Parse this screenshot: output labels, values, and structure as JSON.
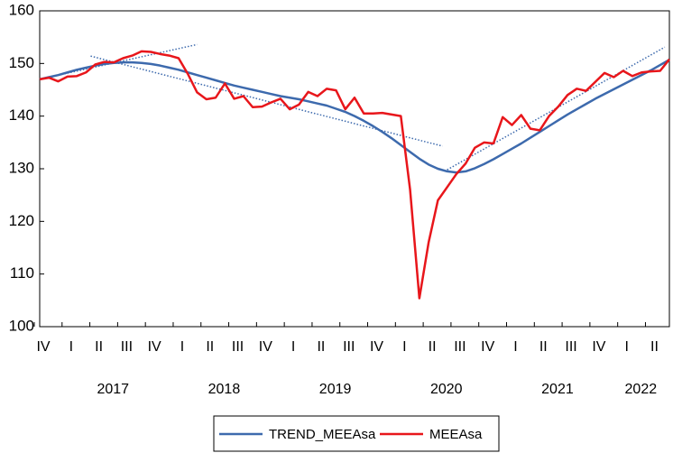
{
  "chart_data": {
    "type": "line",
    "categories": [
      "IV",
      null,
      null,
      "I",
      null,
      null,
      "II",
      null,
      null,
      "III",
      null,
      null,
      "IV",
      null,
      null,
      "I",
      null,
      null,
      "II",
      null,
      null,
      "III",
      null,
      null,
      "IV",
      null,
      null,
      "I",
      null,
      null,
      "II",
      null,
      null,
      "III",
      null,
      null,
      "IV",
      null,
      null,
      "I",
      null,
      null,
      "II",
      null,
      null,
      "III",
      null,
      null,
      "IV",
      null,
      null,
      "I",
      null,
      null,
      "II",
      null,
      null,
      "III",
      null,
      null,
      "IV",
      null,
      null,
      "I",
      null,
      null,
      "II",
      null,
      null
    ],
    "years": [
      "2017",
      "2018",
      "2019",
      "2020",
      "2021",
      "2022"
    ],
    "series": [
      {
        "name": "TREND_MEEAsa",
        "color": "#3d6aad",
        "values": [
          147.0,
          147.4,
          147.8,
          148.3,
          148.8,
          149.2,
          149.6,
          149.9,
          150.1,
          150.2,
          150.2,
          150.1,
          149.9,
          149.6,
          149.2,
          148.8,
          148.3,
          147.8,
          147.3,
          146.8,
          146.3,
          145.8,
          145.4,
          145.0,
          144.6,
          144.2,
          143.8,
          143.5,
          143.2,
          142.8,
          142.4,
          142.0,
          141.4,
          140.8,
          140.0,
          139.1,
          138.1,
          137.0,
          135.8,
          134.5,
          133.2,
          131.9,
          130.8,
          130.0,
          129.5,
          129.3,
          129.5,
          130.1,
          130.9,
          131.8,
          132.8,
          133.8,
          134.8,
          135.9,
          137.0,
          138.1,
          139.2,
          140.3,
          141.3,
          142.3,
          143.3,
          144.2,
          145.1,
          146.0,
          146.9,
          147.8,
          148.7,
          149.7,
          150.7
        ]
      },
      {
        "name": "MEEAsa",
        "color": "#e8161b",
        "values": [
          147.0,
          147.3,
          146.6,
          147.5,
          147.6,
          148.3,
          149.8,
          150.3,
          150.2,
          151.0,
          151.5,
          152.3,
          152.2,
          151.8,
          151.5,
          151.0,
          148.0,
          144.5,
          143.2,
          143.5,
          146.2,
          143.3,
          143.8,
          141.7,
          141.8,
          142.6,
          143.3,
          141.3,
          142.2,
          144.6,
          143.8,
          145.2,
          144.9,
          141.3,
          143.5,
          140.5,
          140.5,
          140.6,
          140.3,
          140.0,
          126.0,
          105.4,
          116.0,
          124.0,
          126.5,
          129.0,
          131.0,
          134.0,
          135.0,
          134.8,
          139.8,
          138.3,
          140.2,
          137.6,
          137.3,
          140.0,
          141.8,
          144.0,
          145.2,
          144.8,
          146.5,
          148.2,
          147.4,
          148.6,
          147.6,
          148.3,
          148.5,
          148.6,
          150.8
        ]
      }
    ],
    "trend_lines": [
      {
        "color": "#3d6aad",
        "x": [
          0,
          17
        ],
        "values": [
          147.0,
          153.6
        ]
      },
      {
        "color": "#3d6aad",
        "x": [
          5.5,
          43.5
        ],
        "values": [
          151.4,
          134.3
        ]
      },
      {
        "color": "#3d6aad",
        "x": [
          44,
          67.5
        ],
        "values": [
          129.8,
          153.1
        ]
      }
    ],
    "ylim": [
      100,
      160
    ],
    "yticks": [
      100,
      110,
      120,
      130,
      140,
      150,
      160
    ],
    "legend": "bottom"
  }
}
